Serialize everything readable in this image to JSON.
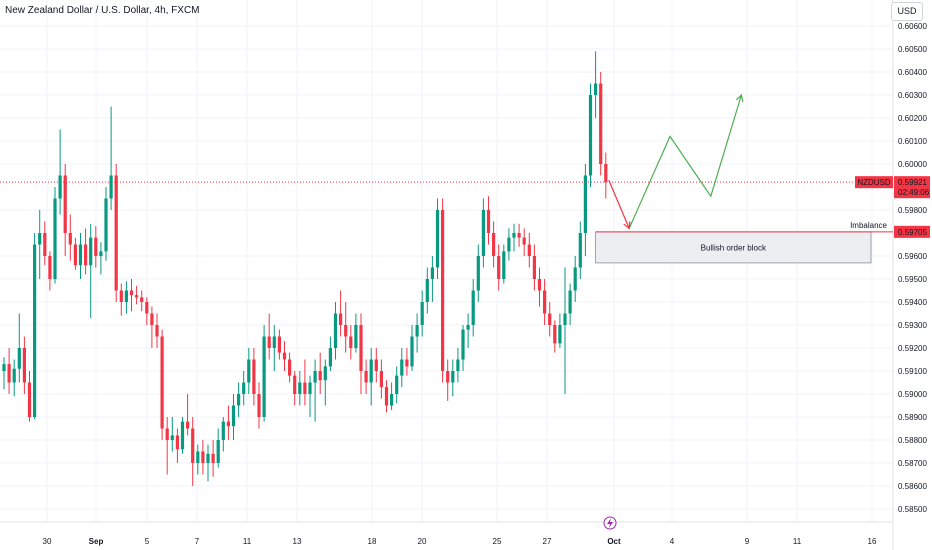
{
  "header": {
    "title": "New Zealand Dollar / U.S. Dollar, 4h, FXCM",
    "currency_button": "USD"
  },
  "price_axis": {
    "ticks": [
      "0.60600",
      "0.60500",
      "0.60400",
      "0.60300",
      "0.60200",
      "0.60100",
      "0.60000",
      "0.59800",
      "0.59600",
      "0.59500",
      "0.59400",
      "0.59300",
      "0.59200",
      "0.59100",
      "0.59000",
      "0.58900",
      "0.58800",
      "0.58700",
      "0.58600",
      "0.58500"
    ]
  },
  "time_axis": {
    "labels": [
      {
        "text": "30",
        "bold": false
      },
      {
        "text": "Sep",
        "bold": true
      },
      {
        "text": "5",
        "bold": false
      },
      {
        "text": "7",
        "bold": false
      },
      {
        "text": "11",
        "bold": false
      },
      {
        "text": "13",
        "bold": false
      },
      {
        "text": "18",
        "bold": false
      },
      {
        "text": "20",
        "bold": false
      },
      {
        "text": "25",
        "bold": false
      },
      {
        "text": "27",
        "bold": false
      },
      {
        "text": "Oct",
        "bold": true
      },
      {
        "text": "4",
        "bold": false
      },
      {
        "text": "9",
        "bold": false
      },
      {
        "text": "11",
        "bold": false
      },
      {
        "text": "16",
        "bold": false
      }
    ]
  },
  "price_tags": {
    "symbol": "NZDUSD",
    "last_price": "0.59921",
    "countdown": "02:49:06",
    "imbalance_label": "Imbalance",
    "imbalance_price": "0.59705"
  },
  "annotations": {
    "order_block_label": "Bullish order block"
  },
  "colors": {
    "up": "#089981",
    "down": "#f23645",
    "projection": "#4caf50",
    "grid": "#f0f3fa",
    "event_marker": "#9c27b0"
  },
  "icons": {
    "event_marker": "lightning-icon"
  },
  "chart_data": {
    "type": "candlestick",
    "interval": "4h",
    "symbol": "NZDUSD",
    "last_price": 0.59921,
    "imbalance_level": 0.59705,
    "ohlc": [
      [
        0.591,
        0.5916,
        0.5902,
        0.5913
      ],
      [
        0.5913,
        0.592,
        0.59,
        0.5905
      ],
      [
        0.5905,
        0.5915,
        0.5899,
        0.5911
      ],
      [
        0.5911,
        0.5935,
        0.5905,
        0.592
      ],
      [
        0.592,
        0.5925,
        0.59,
        0.5905
      ],
      [
        0.5905,
        0.591,
        0.5888,
        0.589
      ],
      [
        0.589,
        0.597,
        0.5889,
        0.5965
      ],
      [
        0.5965,
        0.598,
        0.595,
        0.597
      ],
      [
        0.597,
        0.5975,
        0.5956,
        0.596
      ],
      [
        0.596,
        0.5962,
        0.5945,
        0.595
      ],
      [
        0.595,
        0.599,
        0.5948,
        0.5985
      ],
      [
        0.5985,
        0.6015,
        0.5978,
        0.5995
      ],
      [
        0.5995,
        0.6,
        0.596,
        0.597
      ],
      [
        0.597,
        0.5978,
        0.5958,
        0.5965
      ],
      [
        0.5965,
        0.5968,
        0.5954,
        0.5956
      ],
      [
        0.5956,
        0.597,
        0.595,
        0.5965
      ],
      [
        0.5965,
        0.5972,
        0.5952,
        0.5956
      ],
      [
        0.5956,
        0.5974,
        0.5933,
        0.5968
      ],
      [
        0.5968,
        0.5973,
        0.5955,
        0.596
      ],
      [
        0.596,
        0.5966,
        0.5952,
        0.5962
      ],
      [
        0.5962,
        0.599,
        0.5958,
        0.5985
      ],
      [
        0.5985,
        0.6025,
        0.598,
        0.5995
      ],
      [
        0.5995,
        0.6,
        0.594,
        0.5945
      ],
      [
        0.5945,
        0.5948,
        0.5934,
        0.594
      ],
      [
        0.594,
        0.5949,
        0.5935,
        0.5945
      ],
      [
        0.5945,
        0.595,
        0.5936,
        0.5943
      ],
      [
        0.5943,
        0.5947,
        0.5939,
        0.5942
      ],
      [
        0.5942,
        0.5945,
        0.5936,
        0.594
      ],
      [
        0.594,
        0.5942,
        0.593,
        0.5935
      ],
      [
        0.5935,
        0.5938,
        0.592,
        0.593
      ],
      [
        0.593,
        0.5935,
        0.592,
        0.5925
      ],
      [
        0.5925,
        0.5928,
        0.588,
        0.5885
      ],
      [
        0.5885,
        0.589,
        0.5865,
        0.588
      ],
      [
        0.588,
        0.589,
        0.5875,
        0.5882
      ],
      [
        0.5882,
        0.5885,
        0.587,
        0.5876
      ],
      [
        0.5876,
        0.589,
        0.5874,
        0.5888
      ],
      [
        0.5888,
        0.59,
        0.5882,
        0.5885
      ],
      [
        0.5885,
        0.589,
        0.586,
        0.587
      ],
      [
        0.587,
        0.5878,
        0.5865,
        0.5875
      ],
      [
        0.5875,
        0.588,
        0.5865,
        0.587
      ],
      [
        0.587,
        0.5878,
        0.5862,
        0.5874
      ],
      [
        0.5874,
        0.588,
        0.5864,
        0.587
      ],
      [
        0.587,
        0.5885,
        0.5868,
        0.588
      ],
      [
        0.588,
        0.589,
        0.5875,
        0.5888
      ],
      [
        0.5888,
        0.5895,
        0.588,
        0.5886
      ],
      [
        0.5886,
        0.59,
        0.588,
        0.5895
      ],
      [
        0.5895,
        0.5905,
        0.589,
        0.59
      ],
      [
        0.59,
        0.591,
        0.5895,
        0.5905
      ],
      [
        0.5905,
        0.592,
        0.59,
        0.5915
      ],
      [
        0.5915,
        0.592,
        0.5895,
        0.59
      ],
      [
        0.59,
        0.5905,
        0.5885,
        0.589
      ],
      [
        0.589,
        0.593,
        0.5888,
        0.5925
      ],
      [
        0.5925,
        0.5935,
        0.5915,
        0.592
      ],
      [
        0.592,
        0.593,
        0.591,
        0.5925
      ],
      [
        0.5925,
        0.5928,
        0.5915,
        0.5918
      ],
      [
        0.5918,
        0.5923,
        0.591,
        0.5915
      ],
      [
        0.5915,
        0.5918,
        0.5905,
        0.5908
      ],
      [
        0.5908,
        0.591,
        0.5895,
        0.59
      ],
      [
        0.59,
        0.591,
        0.5895,
        0.5905
      ],
      [
        0.5905,
        0.5915,
        0.5895,
        0.59
      ],
      [
        0.59,
        0.5908,
        0.589,
        0.5905
      ],
      [
        0.5905,
        0.5915,
        0.5888,
        0.591
      ],
      [
        0.591,
        0.5918,
        0.59,
        0.5906
      ],
      [
        0.5906,
        0.5915,
        0.5895,
        0.5912
      ],
      [
        0.5912,
        0.5925,
        0.591,
        0.592
      ],
      [
        0.592,
        0.594,
        0.5915,
        0.5935
      ],
      [
        0.5935,
        0.5945,
        0.5925,
        0.593
      ],
      [
        0.593,
        0.594,
        0.5918,
        0.5925
      ],
      [
        0.5925,
        0.593,
        0.5915,
        0.592
      ],
      [
        0.592,
        0.5935,
        0.5918,
        0.593
      ],
      [
        0.593,
        0.5935,
        0.59,
        0.591
      ],
      [
        0.591,
        0.5915,
        0.59,
        0.5905
      ],
      [
        0.5905,
        0.592,
        0.5895,
        0.5915
      ],
      [
        0.5915,
        0.592,
        0.5905,
        0.591
      ],
      [
        0.591,
        0.5915,
        0.5898,
        0.5903
      ],
      [
        0.5903,
        0.5906,
        0.5892,
        0.5895
      ],
      [
        0.5895,
        0.5905,
        0.5893,
        0.59
      ],
      [
        0.59,
        0.5912,
        0.5896,
        0.5908
      ],
      [
        0.5908,
        0.592,
        0.5903,
        0.5915
      ],
      [
        0.5915,
        0.592,
        0.5908,
        0.5912
      ],
      [
        0.5912,
        0.593,
        0.591,
        0.5925
      ],
      [
        0.5925,
        0.5935,
        0.5918,
        0.593
      ],
      [
        0.593,
        0.5945,
        0.5925,
        0.594
      ],
      [
        0.594,
        0.5955,
        0.5935,
        0.595
      ],
      [
        0.595,
        0.596,
        0.594,
        0.5955
      ],
      [
        0.5955,
        0.5985,
        0.595,
        0.598
      ],
      [
        0.598,
        0.5985,
        0.5905,
        0.591
      ],
      [
        0.591,
        0.5915,
        0.5897,
        0.5905
      ],
      [
        0.5905,
        0.5915,
        0.5899,
        0.591
      ],
      [
        0.591,
        0.592,
        0.5905,
        0.5915
      ],
      [
        0.5915,
        0.593,
        0.591,
        0.5928
      ],
      [
        0.5928,
        0.5935,
        0.592,
        0.593
      ],
      [
        0.593,
        0.595,
        0.5925,
        0.5945
      ],
      [
        0.5945,
        0.5965,
        0.594,
        0.596
      ],
      [
        0.596,
        0.5985,
        0.5955,
        0.598
      ],
      [
        0.598,
        0.5986,
        0.5965,
        0.597
      ],
      [
        0.597,
        0.5975,
        0.5955,
        0.596
      ],
      [
        0.596,
        0.5965,
        0.5945,
        0.595
      ],
      [
        0.595,
        0.5965,
        0.5948,
        0.5962
      ],
      [
        0.5962,
        0.5972,
        0.5958,
        0.5968
      ],
      [
        0.5968,
        0.5974,
        0.5962,
        0.597
      ],
      [
        0.597,
        0.5974,
        0.5964,
        0.5968
      ],
      [
        0.5968,
        0.5972,
        0.596,
        0.5965
      ],
      [
        0.5965,
        0.597,
        0.5955,
        0.596
      ],
      [
        0.596,
        0.5965,
        0.5945,
        0.595
      ],
      [
        0.595,
        0.5955,
        0.5938,
        0.5945
      ],
      [
        0.5945,
        0.595,
        0.593,
        0.5935
      ],
      [
        0.5935,
        0.594,
        0.5925,
        0.593
      ],
      [
        0.593,
        0.5932,
        0.5918,
        0.5922
      ],
      [
        0.5922,
        0.5935,
        0.592,
        0.593
      ],
      [
        0.593,
        0.5955,
        0.59,
        0.5935
      ],
      [
        0.5935,
        0.5948,
        0.593,
        0.5945
      ],
      [
        0.5945,
        0.596,
        0.594,
        0.5955
      ],
      [
        0.5955,
        0.5975,
        0.595,
        0.597
      ],
      [
        0.597,
        0.6,
        0.596,
        0.5995
      ],
      [
        0.5995,
        0.6035,
        0.599,
        0.603
      ],
      [
        0.603,
        0.6049,
        0.602,
        0.6035
      ],
      [
        0.6035,
        0.604,
        0.5995,
        0.6
      ],
      [
        0.6,
        0.6005,
        0.5985,
        0.59921
      ]
    ],
    "projection_path": [
      {
        "bar_offset": 0,
        "price": 0.5993
      },
      {
        "bar_offset": 4,
        "price": 0.5972
      },
      {
        "bar_offset": 12,
        "price": 0.6012
      },
      {
        "bar_offset": 20,
        "price": 0.5986
      },
      {
        "bar_offset": 26,
        "price": 0.603
      }
    ],
    "order_block_zone": {
      "price_high": 0.59705,
      "price_low": 0.5957,
      "bar_start": -2,
      "bar_end": 52
    }
  }
}
